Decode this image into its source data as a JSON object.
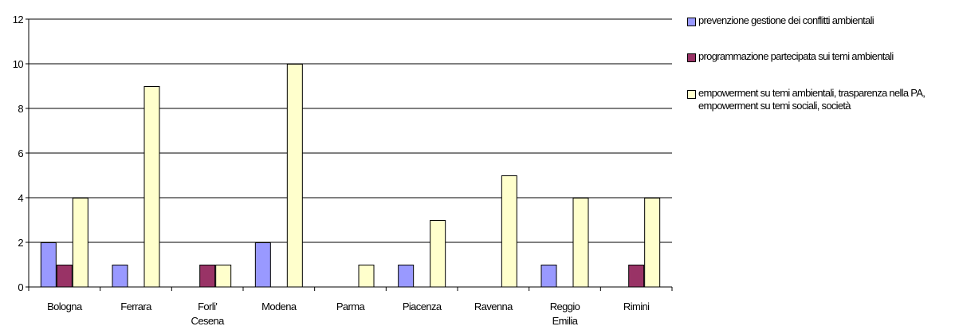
{
  "chart_data": {
    "type": "bar",
    "categories": [
      "Bologna",
      "Ferrara",
      "Forli' Cesena",
      "Modena",
      "Parma",
      "Piacenza",
      "Ravenna",
      "Reggio Emilia",
      "Rimini"
    ],
    "category_lines": [
      [
        "Bologna"
      ],
      [
        "Ferrara"
      ],
      [
        "Forli'",
        "Cesena"
      ],
      [
        "Modena"
      ],
      [
        "Parma"
      ],
      [
        "Piacenza"
      ],
      [
        "Ravenna"
      ],
      [
        "Reggio",
        "Emilia"
      ],
      [
        "Rimini"
      ]
    ],
    "series": [
      {
        "name": "prevenzione gestione dei conflitti ambientali",
        "color": "#9999FF",
        "values": [
          2,
          1,
          0,
          2,
          0,
          1,
          0,
          1,
          0
        ]
      },
      {
        "name": "programmazione partecipata sui temi ambientali",
        "color": "#993366",
        "values": [
          1,
          0,
          1,
          0,
          0,
          0,
          0,
          0,
          1
        ]
      },
      {
        "name": "empowerment su temi ambientali, trasparenza nella PA, empowerment su temi sociali, società",
        "color": "#FFFFCC",
        "values": [
          4,
          9,
          1,
          10,
          1,
          3,
          5,
          4,
          4
        ]
      }
    ],
    "yticks": [
      "0",
      "2",
      "4",
      "6",
      "8",
      "10",
      "12"
    ],
    "ylim": [
      0,
      12
    ],
    "grid": true,
    "legend_position": "right"
  }
}
